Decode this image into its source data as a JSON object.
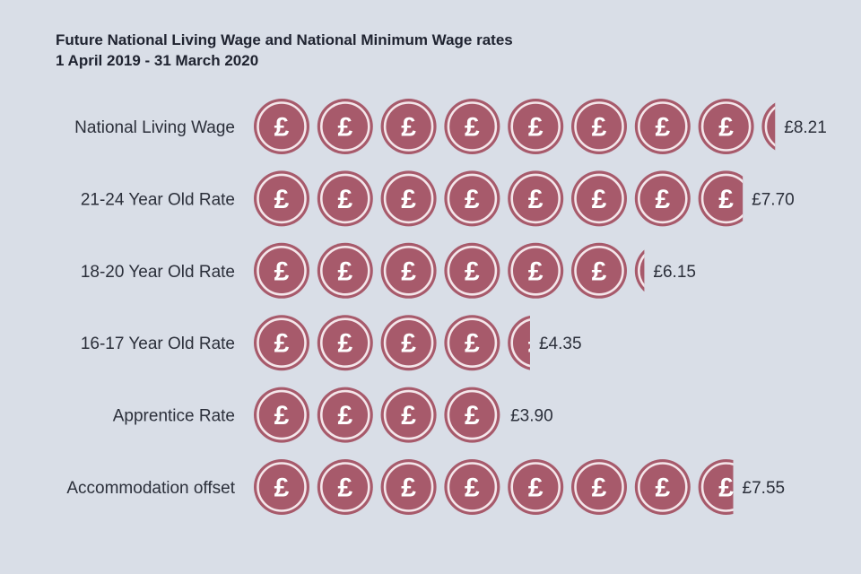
{
  "chart_data": {
    "type": "bar",
    "title": "Future National Living Wage and National Minimum Wage rates",
    "subtitle": "1 April 2019 - 31 March 2020",
    "categories": [
      "National Living Wage",
      "21-24 Year Old Rate",
      "18-20 Year Old Rate",
      "16-17 Year Old Rate",
      "Apprentice Rate",
      "Accommodation offset"
    ],
    "values": [
      8.21,
      7.7,
      6.15,
      4.35,
      3.9,
      7.55
    ],
    "value_labels": [
      "£8.21",
      "£7.70",
      "£6.15",
      "£4.35",
      "£3.90",
      "£7.55"
    ],
    "unit_symbol": "£",
    "coin_color": "#a75a6b",
    "coin_ring_color": "#f4e6ea"
  }
}
